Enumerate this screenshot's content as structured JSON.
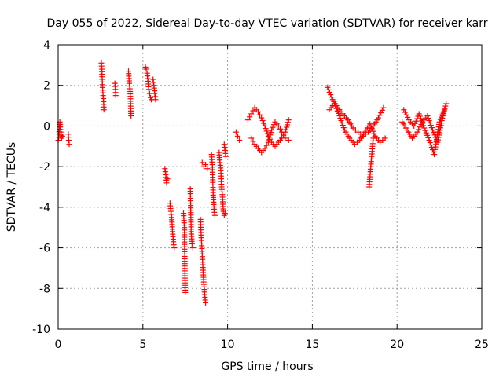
{
  "chart_data": {
    "type": "scatter",
    "title": "Day 055 of 2022, Sidereal Day-to-day VTEC variation (SDTVAR) for receiver karr",
    "xlabel": "GPS time / hours",
    "ylabel": "SDTVAR / TECUs",
    "xlim": [
      0,
      25
    ],
    "ylim": [
      -10,
      4
    ],
    "xticks": [
      0,
      5,
      10,
      15,
      20,
      25
    ],
    "yticks": [
      -10,
      -8,
      -6,
      -4,
      -2,
      0,
      2,
      4
    ],
    "grid": true,
    "marker": "+",
    "color": "#ff0000",
    "segments": [
      {
        "x": [
          0.0,
          0.05,
          0.1,
          0.15,
          0.2,
          0.25
        ],
        "y": [
          -0.7,
          -0.4,
          0.2,
          -0.3,
          -0.6,
          -0.5
        ]
      },
      {
        "x": [
          0.6,
          0.62,
          0.65
        ],
        "y": [
          -0.4,
          -0.7,
          -0.9
        ]
      },
      {
        "x": [
          2.55,
          2.58,
          2.6,
          2.62,
          2.65,
          2.68,
          2.7
        ],
        "y": [
          3.1,
          2.8,
          2.3,
          1.9,
          1.5,
          1.2,
          0.8
        ]
      },
      {
        "x": [
          3.35,
          3.38,
          3.4
        ],
        "y": [
          2.1,
          1.8,
          1.5
        ]
      },
      {
        "x": [
          4.15,
          4.2,
          4.25,
          4.3
        ],
        "y": [
          2.7,
          2.1,
          1.7,
          0.5
        ]
      },
      {
        "x": [
          5.15,
          5.2,
          5.25,
          5.3,
          5.35,
          5.4,
          5.45,
          5.5
        ],
        "y": [
          2.9,
          2.8,
          2.6,
          2.2,
          1.8,
          1.6,
          1.4,
          1.3
        ]
      },
      {
        "x": [
          5.6,
          5.65,
          5.7,
          5.75
        ],
        "y": [
          2.3,
          2.0,
          1.6,
          1.3
        ]
      },
      {
        "x": [
          6.3,
          6.35,
          6.4,
          6.45
        ],
        "y": [
          -2.1,
          -2.4,
          -2.8,
          -2.6
        ]
      },
      {
        "x": [
          6.6,
          6.65,
          6.7,
          6.75,
          6.8,
          6.85
        ],
        "y": [
          -3.8,
          -4.2,
          -4.5,
          -5.2,
          -5.7,
          -6.0
        ]
      },
      {
        "x": [
          7.4,
          7.45,
          7.5
        ],
        "y": [
          -4.3,
          -5.0,
          -8.2
        ]
      },
      {
        "x": [
          7.8,
          7.85,
          7.9,
          7.95
        ],
        "y": [
          -3.1,
          -5.2,
          -5.8,
          -6.0
        ]
      },
      {
        "x": [
          8.4,
          8.45,
          8.5,
          8.55,
          8.6,
          8.65,
          8.7
        ],
        "y": [
          -4.6,
          -5.5,
          -6.3,
          -7.1,
          -7.8,
          -8.3,
          -8.7
        ]
      },
      {
        "x": [
          8.5,
          8.6,
          8.7,
          8.8
        ],
        "y": [
          -1.8,
          -2.0,
          -1.9,
          -2.1
        ]
      },
      {
        "x": [
          9.05,
          9.1,
          9.15,
          9.2,
          9.25
        ],
        "y": [
          -1.4,
          -1.9,
          -3.4,
          -4.1,
          -4.4
        ]
      },
      {
        "x": [
          9.5,
          9.55,
          9.6,
          9.65,
          9.7,
          9.75,
          9.8,
          9.85
        ],
        "y": [
          -1.3,
          -1.8,
          -2.2,
          -3.0,
          -3.5,
          -4.2,
          -4.4,
          -4.3
        ]
      },
      {
        "x": [
          9.8,
          9.85,
          9.9
        ],
        "y": [
          -0.9,
          -1.2,
          -1.5
        ]
      },
      {
        "x": [
          10.5,
          10.6,
          10.7
        ],
        "y": [
          -0.3,
          -0.5,
          -0.7
        ]
      },
      {
        "x": [
          11.2,
          11.4,
          11.6,
          11.8,
          12.0,
          12.2,
          12.4,
          12.6,
          12.8,
          13.0,
          13.2,
          13.4,
          13.6
        ],
        "y": [
          0.3,
          0.6,
          0.9,
          0.7,
          0.4,
          0.0,
          -0.5,
          -0.8,
          -1.0,
          -0.8,
          -0.6,
          -0.3,
          0.3
        ]
      },
      {
        "x": [
          11.4,
          11.6,
          11.8,
          12.0,
          12.2,
          12.4,
          12.6,
          12.8,
          13.0,
          13.2,
          13.4,
          13.6
        ],
        "y": [
          -0.6,
          -0.9,
          -1.1,
          -1.3,
          -1.1,
          -0.8,
          -0.2,
          0.2,
          0.0,
          -0.3,
          -0.6,
          -0.7
        ]
      },
      {
        "x": [
          15.9,
          16.2,
          16.5,
          16.8,
          17.1,
          17.4,
          17.7,
          18.0,
          18.3,
          18.6,
          18.9,
          19.2
        ],
        "y": [
          1.9,
          1.3,
          0.9,
          0.6,
          0.3,
          -0.1,
          -0.3,
          -0.5,
          -0.3,
          0.0,
          0.4,
          0.9
        ]
      },
      {
        "x": [
          16.0,
          16.3,
          16.6,
          16.9,
          17.2,
          17.5,
          17.8,
          18.1,
          18.4,
          18.7,
          19.0,
          19.3
        ],
        "y": [
          0.8,
          1.1,
          0.5,
          -0.2,
          -0.6,
          -0.9,
          -0.7,
          -0.3,
          0.1,
          -0.5,
          -0.8,
          -0.6
        ]
      },
      {
        "x": [
          18.35,
          18.4,
          18.45,
          18.5,
          18.55,
          18.6
        ],
        "y": [
          -3.0,
          -2.5,
          -2.0,
          -1.5,
          -1.0,
          -0.6
        ]
      },
      {
        "x": [
          20.3,
          20.6,
          20.9,
          21.2,
          21.5,
          21.8,
          22.1,
          22.4,
          22.7,
          22.9
        ],
        "y": [
          0.2,
          -0.2,
          -0.6,
          -0.3,
          0.2,
          0.5,
          -0.2,
          -0.8,
          0.5,
          1.1
        ]
      },
      {
        "x": [
          20.4,
          20.7,
          21.0,
          21.3,
          21.6,
          21.9,
          22.2,
          22.5,
          22.8
        ],
        "y": [
          0.8,
          0.3,
          0.0,
          0.6,
          -0.1,
          -0.7,
          -1.4,
          0.2,
          0.8
        ]
      }
    ]
  }
}
